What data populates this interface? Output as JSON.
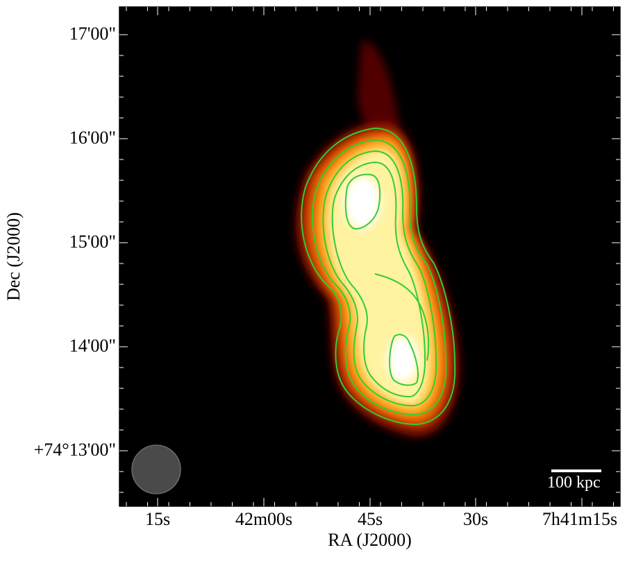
{
  "figure": {
    "xlabel": "RA (J2000)",
    "ylabel": "Dec (J2000)",
    "xticks": [
      "15s",
      "42m00s",
      "45s",
      "30s",
      "7h41m15s"
    ],
    "yticks": [
      "17'00\"",
      "16'00\"",
      "15'00\"",
      "14'00\"",
      "+74°13'00\""
    ],
    "scalebar_label": "100 kpc",
    "colormap": "hot (black-red-orange-yellow-white)",
    "contour_color": "#33cc33",
    "beam": "grey circle, bottom-left",
    "contour_levels_drawn": 5
  }
}
